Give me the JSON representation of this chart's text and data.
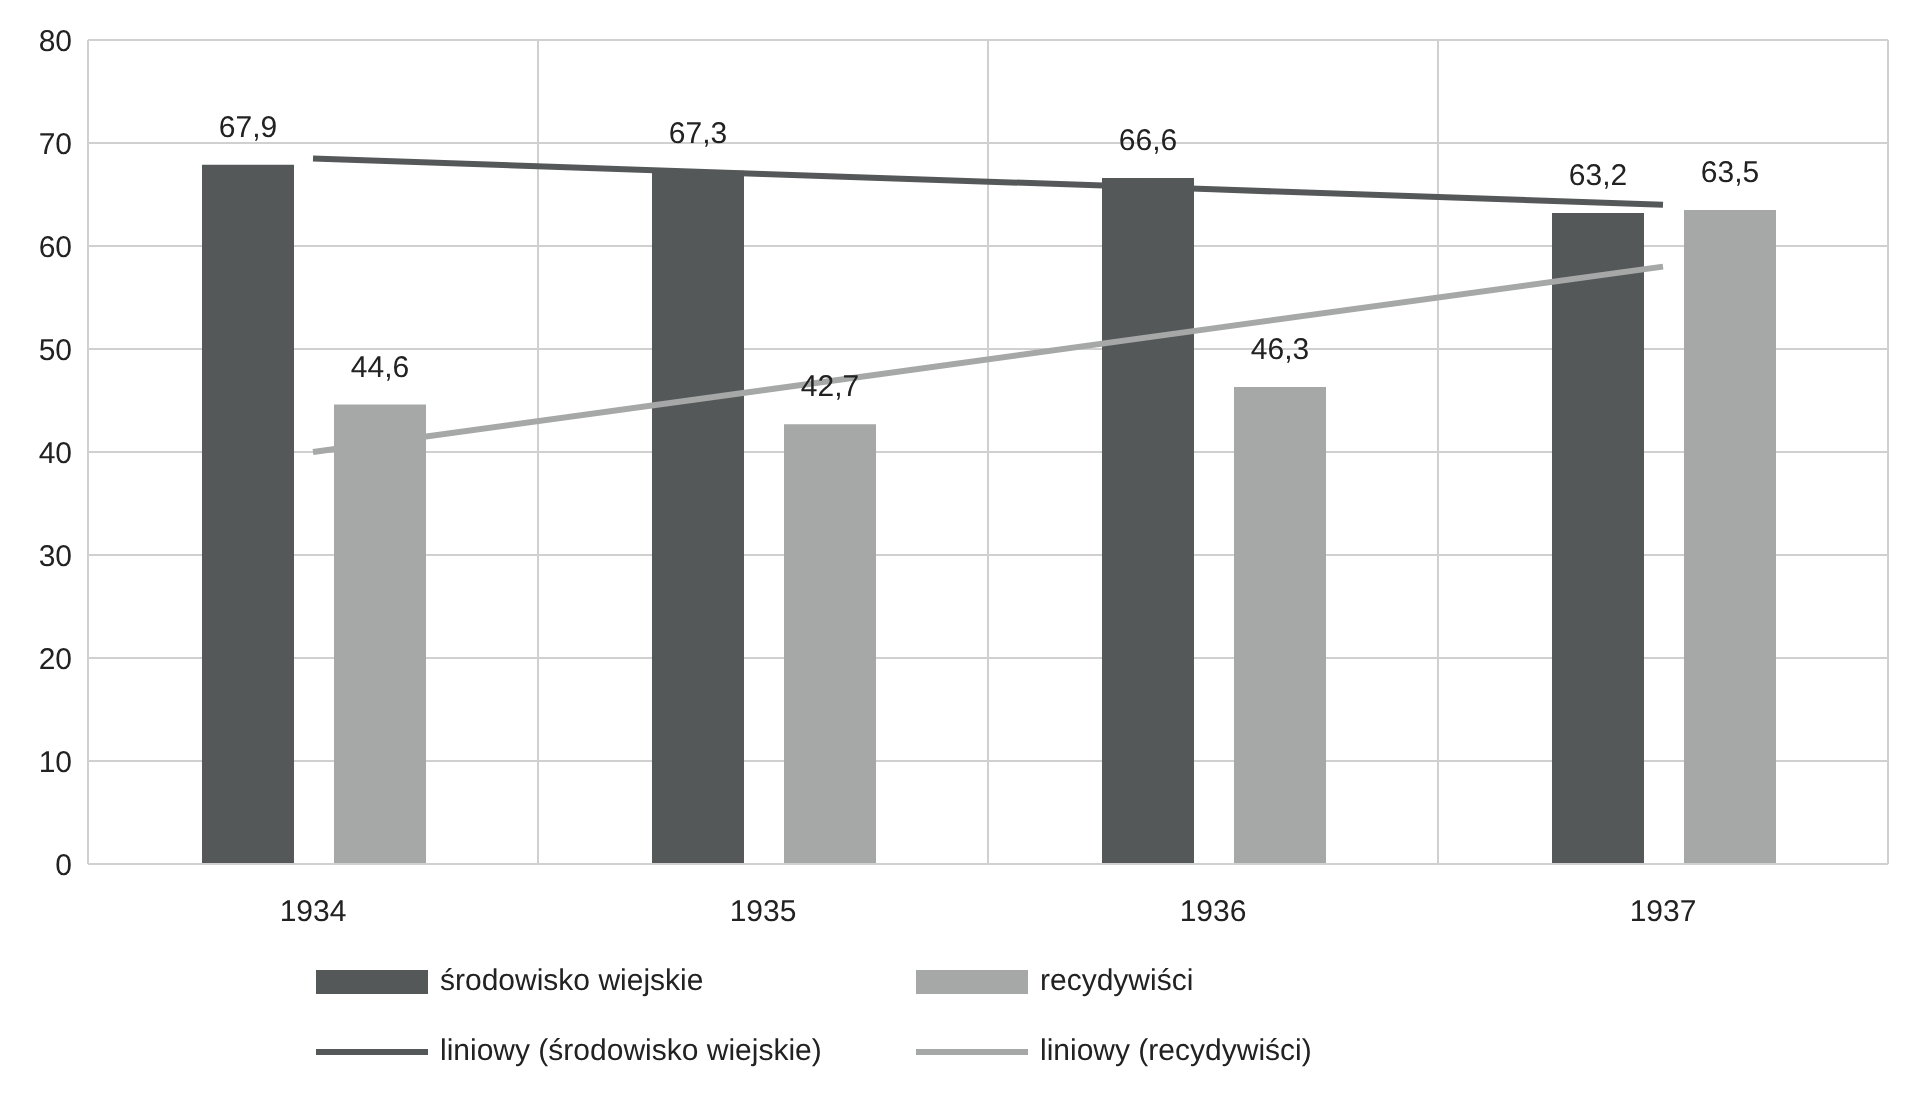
{
  "chart_data": {
    "type": "bar",
    "categories": [
      "1934",
      "1935",
      "1936",
      "1937"
    ],
    "series": [
      {
        "name": "środowisko wiejskie",
        "color": "#555859",
        "values": [
          67.9,
          67.3,
          66.6,
          63.2
        ],
        "value_labels": [
          "67,9",
          "67,3",
          "66,6",
          "63,2"
        ]
      },
      {
        "name": "recydywiści",
        "color": "#a6a8a8",
        "values": [
          44.6,
          42.7,
          46.3,
          63.5
        ],
        "value_labels": [
          "44,6",
          "42,7",
          "46,3",
          "63,5"
        ]
      },
      {
        "name": "liniowy (środowisko wiejskie)",
        "type": "line",
        "color": "#555859",
        "values": [
          68.5,
          67,
          65.5,
          64
        ]
      },
      {
        "name": "liniowy (recydywiści)",
        "type": "line",
        "color": "#a6a8a8",
        "values": [
          40,
          46,
          52,
          58
        ]
      }
    ],
    "ylim": [
      0,
      80
    ],
    "yticks": [
      0,
      10,
      20,
      30,
      40,
      50,
      60,
      70,
      80
    ],
    "grid": true,
    "legend": "bottom"
  }
}
